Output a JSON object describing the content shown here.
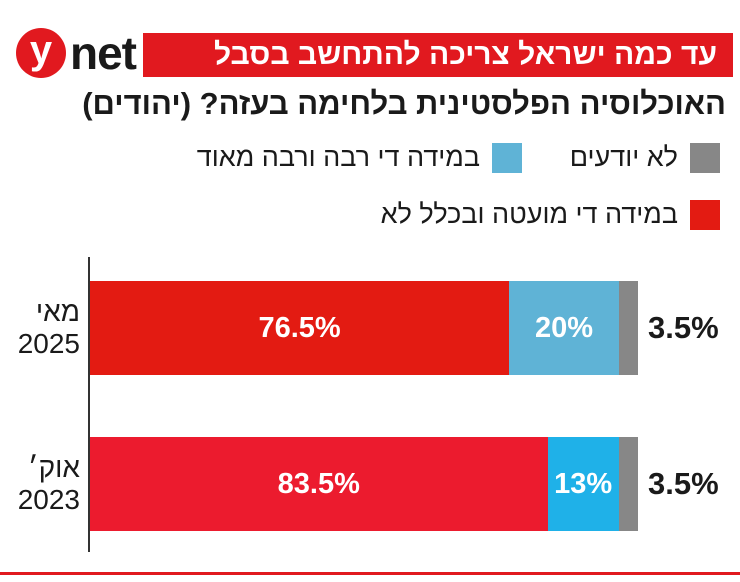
{
  "brand": {
    "logo_letter": "y",
    "logo_word": "net"
  },
  "colors": {
    "brand_red": "#e1191f",
    "little_or_not": [
      "#e31b12",
      "#ec1b2e"
    ],
    "much": [
      "#5fb3d6",
      "#1fb1e8"
    ],
    "dont_know": "#878787"
  },
  "legend": {
    "dont_know": "לא יודעים",
    "much": "במידה די רבה ורבה מאוד",
    "little_or_not": "במידה די מועטה ובכלל לא"
  },
  "chart_data": {
    "type": "bar",
    "orientation": "horizontal",
    "stacked": true,
    "title": "עד כמה ישראל צריכה להתחשב בסבל",
    "subtitle": "האוכלוסיה הפלסטינית בלחימה בעזה? (יהודים)",
    "categories": [
      {
        "month": "מאי",
        "year": "2025"
      },
      {
        "month": "אוק׳",
        "year": "2023"
      }
    ],
    "series": [
      {
        "name": "במידה די מועטה ובכלל לא",
        "values": [
          76.5,
          83.5
        ],
        "labels": [
          "76.5%",
          "83.5%"
        ]
      },
      {
        "name": "במידה די רבה ורבה מאוד",
        "values": [
          20,
          13
        ],
        "labels": [
          "20%",
          "13%"
        ]
      },
      {
        "name": "לא יודעים",
        "values": [
          3.5,
          3.5
        ],
        "labels": [
          "3.5%",
          "3.5%"
        ]
      }
    ],
    "xlim": [
      0,
      100
    ],
    "legend_position": "top-right",
    "grid": false
  }
}
